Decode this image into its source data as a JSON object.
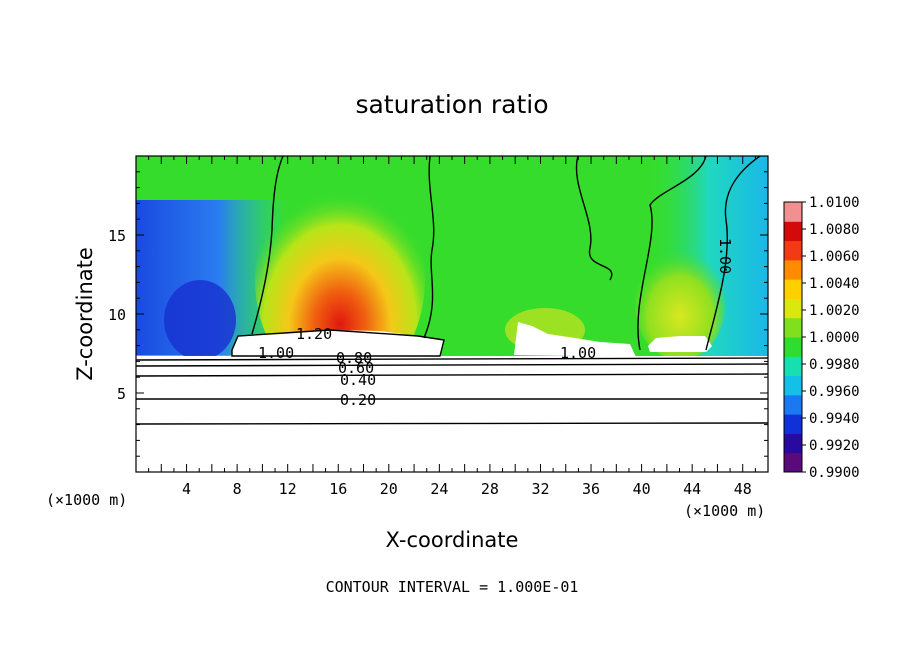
{
  "chart_data": {
    "type": "heatmap",
    "title": "saturation ratio",
    "xlabel": "X-coordinate",
    "ylabel": "Z-coordinate",
    "x_units": "(×1000 m)",
    "z_units": "(×1000 m)",
    "xlim": [
      0,
      50
    ],
    "ylim": [
      0,
      20
    ],
    "x_ticks": [
      4,
      8,
      12,
      16,
      20,
      24,
      28,
      32,
      36,
      40,
      44,
      48
    ],
    "y_ticks": [
      5,
      10,
      15
    ],
    "colorbar": {
      "min": 0.99,
      "max": 1.01,
      "tick_labels": [
        "1.0100",
        "1.0080",
        "1.0060",
        "1.0040",
        "1.0020",
        "1.0000",
        "0.9980",
        "0.9960",
        "0.9940",
        "0.9920",
        "0.9900"
      ],
      "colors": [
        "#5a0a7a",
        "#2a0a9e",
        "#1030d8",
        "#1a78f0",
        "#14c0e8",
        "#16e0b0",
        "#30dc30",
        "#80e020",
        "#d8e810",
        "#ffd000",
        "#ff8c00",
        "#f23a14",
        "#d40a0a",
        "#f09090"
      ]
    },
    "contour_labels": [
      "1.20",
      "1.00",
      "0.80",
      "0.60",
      "0.40",
      "0.20",
      "1.00",
      "1.00"
    ],
    "annotation": "CONTOUR INTERVAL = 1.000E-01"
  }
}
